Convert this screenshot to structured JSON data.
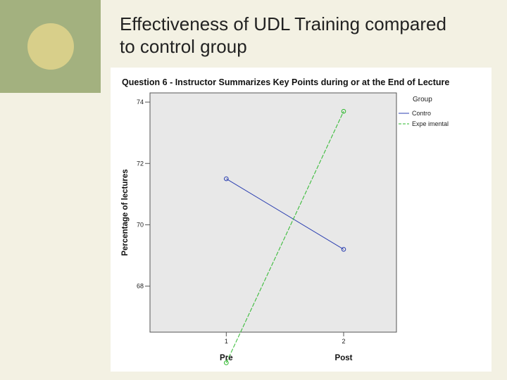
{
  "slide": {
    "title_line1": "Effectiveness of UDL Training compared",
    "title_line2": "to control group"
  },
  "chart_data": {
    "type": "line",
    "title": "Question 6 - Instructor Summarizes Key Points during or at the End of Lecture",
    "ylabel": "Percentage of lectures",
    "xlabel": "",
    "x": [
      1,
      2
    ],
    "x_tick_labels": [
      "1",
      "2"
    ],
    "categories": [
      "Pre",
      "Post"
    ],
    "y_ticks": [
      68,
      70,
      72,
      74
    ],
    "y_tick_labels": [
      "68",
      "70",
      "72",
      "74"
    ],
    "ylim": [
      66.5,
      74.3
    ],
    "xlim": [
      0.35,
      2.45
    ],
    "grid": false,
    "legend": {
      "title": "Group",
      "placement": "right"
    },
    "series": [
      {
        "name": "Contro",
        "values": [
          71.5,
          69.2
        ],
        "color": "#2b3fb0",
        "dash": "solid"
      },
      {
        "name": "Expe imental",
        "values": [
          65.5,
          73.7
        ],
        "color": "#2db82d",
        "dash": "dashed"
      }
    ],
    "colors": {
      "plot_background": "#e8e8e8",
      "axis": "#555555"
    }
  }
}
